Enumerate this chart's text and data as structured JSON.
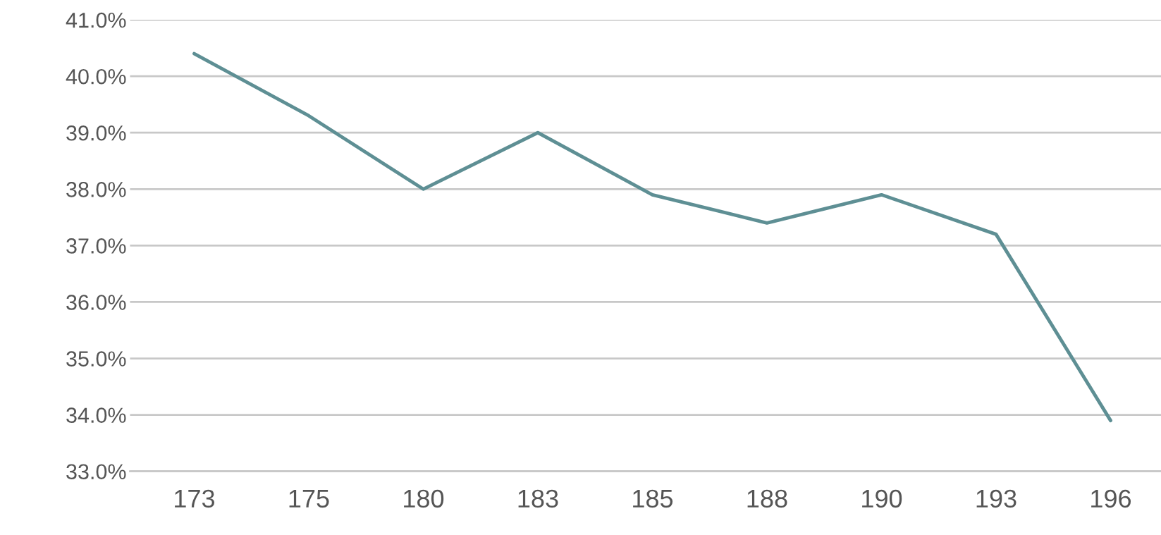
{
  "chart_data": {
    "type": "line",
    "categories": [
      "173",
      "175",
      "180",
      "183",
      "185",
      "188",
      "190",
      "193",
      "196"
    ],
    "series": [
      {
        "color": "#5e8f94",
        "values": [
          40.4,
          39.3,
          38.0,
          39.0,
          37.9,
          37.4,
          37.9,
          37.2,
          33.9
        ]
      }
    ],
    "ylim": [
      33,
      41
    ],
    "yticks": [
      {
        "value": 33,
        "label": "33.0%"
      },
      {
        "value": 34,
        "label": "34.0%"
      },
      {
        "value": 35,
        "label": "35.0%"
      },
      {
        "value": 36,
        "label": "36.0%"
      },
      {
        "value": 37,
        "label": "37.0%"
      },
      {
        "value": 38,
        "label": "38.0%"
      },
      {
        "value": 39,
        "label": "39.0%"
      },
      {
        "value": 40,
        "label": "40.0%"
      },
      {
        "value": 41,
        "label": "41.0%"
      }
    ],
    "grid": "y"
  }
}
